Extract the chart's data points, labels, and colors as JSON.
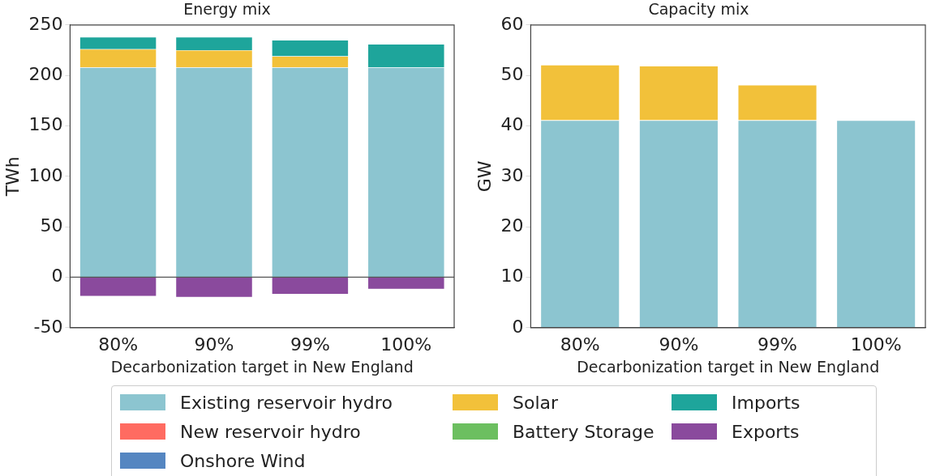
{
  "chart_data": [
    {
      "type": "bar",
      "title": "Energy mix",
      "xlabel": "Decarbonization target in New England",
      "ylabel": "TWh",
      "categories": [
        "80%",
        "90%",
        "99%",
        "100%"
      ],
      "stacked": true,
      "ylim": [
        -50,
        250
      ],
      "yticks": [
        -50,
        0,
        50,
        100,
        150,
        200,
        250
      ],
      "grid": false,
      "legend": "bottom",
      "ref_lines": [
        {
          "axis": "y",
          "value": 0,
          "color": "#555555"
        }
      ],
      "series": [
        {
          "name": "Existing reservoir hydro",
          "color": "#8cc5d0",
          "values": [
            208,
            208,
            208,
            208
          ]
        },
        {
          "name": "New reservoir hydro",
          "color": "#ff6b61",
          "values": [
            0,
            0,
            0,
            0
          ]
        },
        {
          "name": "Onshore Wind",
          "color": "#5586c1",
          "values": [
            0,
            0,
            0,
            0
          ]
        },
        {
          "name": "Solar",
          "color": "#f2c13a",
          "values": [
            18,
            17,
            11,
            0
          ]
        },
        {
          "name": "Battery Storage",
          "color": "#6cbf60",
          "values": [
            0,
            0,
            0,
            0
          ]
        },
        {
          "name": "Imports",
          "color": "#1ea59b",
          "values": [
            12,
            13,
            16,
            23
          ]
        },
        {
          "name": "Exports",
          "color": "#8a4a9d",
          "values": [
            -19,
            -20,
            -17,
            -12
          ]
        }
      ]
    },
    {
      "type": "bar",
      "title": "Capacity mix",
      "xlabel": "Decarbonization target in New England",
      "ylabel": "GW",
      "categories": [
        "80%",
        "90%",
        "99%",
        "100%"
      ],
      "stacked": true,
      "ylim": [
        0,
        60
      ],
      "yticks": [
        0,
        10,
        20,
        30,
        40,
        50,
        60
      ],
      "grid": false,
      "series": [
        {
          "color": "#8cc5d0",
          "values": [
            41.1,
            41.1,
            41.1,
            41.1
          ]
        },
        {
          "color": "#f2c13a",
          "values": [
            11,
            10.8,
            7,
            0
          ]
        }
      ]
    }
  ]
}
